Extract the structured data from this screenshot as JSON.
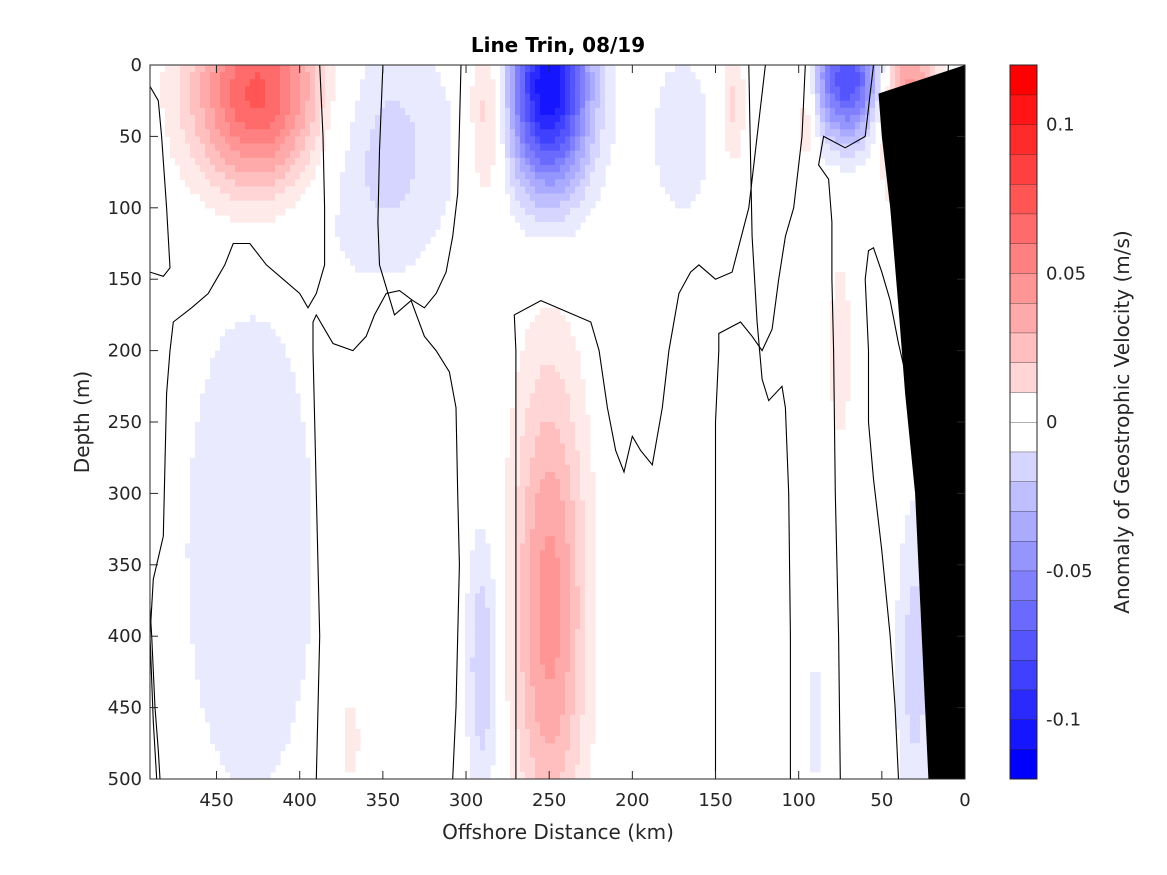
{
  "chart_data": {
    "type": "heatmap",
    "subtype": "filled-contour section",
    "title": "Line Trin, 08/19",
    "xlabel": "Offshore Distance (km)",
    "ylabel": "Depth (m)",
    "colorbar_label": "Anomaly of Geostrophic Velocity (m/s)",
    "x_range": [
      490,
      0
    ],
    "x_reversed": true,
    "y_range": [
      0,
      500
    ],
    "y_reversed": true,
    "x_ticks": [
      450,
      400,
      350,
      300,
      250,
      200,
      150,
      100,
      50,
      0
    ],
    "x_tick_labels": [
      "450",
      "400",
      "350",
      "300",
      "250",
      "200",
      "150",
      "100",
      "50",
      "0"
    ],
    "y_ticks": [
      0,
      50,
      100,
      150,
      200,
      250,
      300,
      350,
      400,
      450,
      500
    ],
    "y_tick_labels": [
      "0",
      "50",
      "100",
      "150",
      "200",
      "250",
      "300",
      "350",
      "400",
      "450",
      "500"
    ],
    "color_range": [
      -0.12,
      0.12
    ],
    "colorbar_levels": [
      -0.12,
      -0.11,
      -0.1,
      -0.09,
      -0.08,
      -0.07,
      -0.06,
      -0.05,
      -0.04,
      -0.03,
      -0.02,
      -0.01,
      0,
      0.01,
      0.02,
      0.03,
      0.04,
      0.05,
      0.06,
      0.07,
      0.08,
      0.09,
      0.1,
      0.11,
      0.12
    ],
    "colorbar_ticks": [
      -0.1,
      -0.05,
      0,
      0.05,
      0.1
    ],
    "colorbar_tick_labels": [
      "-0.1",
      "-0.05",
      "0",
      "0.05",
      "0.1"
    ],
    "zero_contour": "black line",
    "bathymetry_mask_color": "#000000",
    "colors": {
      "positive_max": "#ff0000",
      "negative_max": "#0000ff",
      "zero": "#ffffff"
    },
    "features": [
      {
        "sign": "positive",
        "x_center_km": 425,
        "depth_center_m": 20,
        "x_halfwidth_km": 40,
        "depth_halfheight_m": 70,
        "peak": 0.085
      },
      {
        "sign": "negative",
        "x_center_km": 250,
        "depth_center_m": 15,
        "x_halfwidth_km": 25,
        "depth_halfheight_m": 75,
        "peak": -0.12
      },
      {
        "sign": "negative",
        "x_center_km": 70,
        "depth_center_m": 10,
        "x_halfwidth_km": 22,
        "depth_halfheight_m": 45,
        "peak": -0.09
      },
      {
        "sign": "positive",
        "x_center_km": 35,
        "depth_center_m": 25,
        "x_halfwidth_km": 18,
        "depth_halfheight_m": 60,
        "peak": 0.06
      },
      {
        "sign": "positive",
        "x_center_km": 287,
        "depth_center_m": 30,
        "x_halfwidth_km": 12,
        "depth_halfheight_m": 70,
        "peak": 0.035
      },
      {
        "sign": "positive",
        "x_center_km": 250,
        "depth_center_m": 380,
        "x_halfwidth_km": 22,
        "depth_halfheight_m": 170,
        "peak": 0.055
      },
      {
        "sign": "positive",
        "x_center_km": 140,
        "depth_center_m": 30,
        "x_halfwidth_km": 8,
        "depth_halfheight_m": 45,
        "peak": 0.025
      },
      {
        "sign": "positive",
        "x_center_km": 95,
        "depth_center_m": 30,
        "x_halfwidth_km": 7,
        "depth_halfheight_m": 40,
        "peak": 0.03
      },
      {
        "sign": "positive",
        "x_center_km": 75,
        "depth_center_m": 200,
        "x_halfwidth_km": 9,
        "depth_halfheight_m": 90,
        "peak": 0.015
      },
      {
        "sign": "positive",
        "x_center_km": 370,
        "depth_center_m": 470,
        "x_halfwidth_km": 10,
        "depth_halfheight_m": 50,
        "peak": 0.015
      },
      {
        "sign": "negative",
        "x_center_km": 430,
        "depth_center_m": 340,
        "x_halfwidth_km": 45,
        "depth_halfheight_m": 200,
        "peak": -0.02
      },
      {
        "sign": "negative",
        "x_center_km": 350,
        "depth_center_m": 60,
        "x_halfwidth_km": 45,
        "depth_halfheight_m": 90,
        "peak": -0.025
      },
      {
        "sign": "negative",
        "x_center_km": 290,
        "depth_center_m": 420,
        "x_halfwidth_km": 10,
        "depth_halfheight_m": 100,
        "peak": -0.03
      },
      {
        "sign": "negative",
        "x_center_km": 170,
        "depth_center_m": 50,
        "x_halfwidth_km": 25,
        "depth_halfheight_m": 80,
        "peak": -0.015
      },
      {
        "sign": "negative",
        "x_center_km": 30,
        "depth_center_m": 420,
        "x_halfwidth_km": 12,
        "depth_halfheight_m": 120,
        "peak": -0.025
      },
      {
        "sign": "negative",
        "x_center_km": 90,
        "depth_center_m": 460,
        "x_halfwidth_km": 6,
        "depth_halfheight_m": 60,
        "peak": -0.015
      }
    ],
    "zero_contours": [
      [
        [
          490,
          15
        ],
        [
          485,
          25
        ],
        [
          483,
          50
        ],
        [
          480,
          100
        ],
        [
          478,
          142
        ],
        [
          482,
          148
        ],
        [
          490,
          145
        ]
      ],
      [
        [
          490,
          380
        ],
        [
          489,
          400
        ],
        [
          487,
          450
        ],
        [
          485,
          480
        ],
        [
          484,
          500
        ]
      ],
      [
        [
          486,
          500
        ],
        [
          488,
          460
        ],
        [
          490,
          400
        ],
        [
          488,
          360
        ],
        [
          484,
          340
        ],
        [
          482,
          330
        ],
        [
          480,
          230
        ],
        [
          478,
          200
        ],
        [
          476,
          180
        ],
        [
          465,
          170
        ],
        [
          455,
          160
        ],
        [
          450,
          150
        ],
        [
          445,
          140
        ],
        [
          440,
          125
        ],
        [
          430,
          125
        ],
        [
          420,
          140
        ],
        [
          410,
          150
        ],
        [
          400,
          160
        ],
        [
          395,
          170
        ],
        [
          390,
          160
        ],
        [
          385,
          140
        ],
        [
          385,
          100
        ],
        [
          386,
          50
        ],
        [
          388,
          0
        ]
      ],
      [
        [
          390,
          500
        ],
        [
          389,
          450
        ],
        [
          388,
          400
        ],
        [
          389,
          350
        ],
        [
          390,
          300
        ],
        [
          391,
          250
        ],
        [
          392,
          200
        ],
        [
          392,
          180
        ],
        [
          390,
          175
        ],
        [
          385,
          185
        ],
        [
          380,
          195
        ],
        [
          368,
          200
        ],
        [
          360,
          190
        ],
        [
          355,
          175
        ],
        [
          348,
          160
        ],
        [
          340,
          158
        ],
        [
          332,
          165
        ],
        [
          325,
          170
        ],
        [
          318,
          160
        ],
        [
          312,
          145
        ],
        [
          308,
          120
        ],
        [
          305,
          90
        ],
        [
          304,
          45
        ],
        [
          303,
          0
        ]
      ],
      [
        [
          308,
          500
        ],
        [
          306,
          450
        ],
        [
          305,
          400
        ],
        [
          304,
          350
        ],
        [
          305,
          300
        ],
        [
          306,
          240
        ],
        [
          310,
          215
        ],
        [
          318,
          200
        ],
        [
          325,
          190
        ],
        [
          333,
          165
        ],
        [
          343,
          175
        ],
        [
          352,
          140
        ],
        [
          353,
          110
        ],
        [
          352,
          60
        ],
        [
          350,
          0
        ]
      ],
      [
        [
          270,
          500
        ],
        [
          270,
          400
        ],
        [
          270,
          300
        ],
        [
          270,
          200
        ],
        [
          271,
          175
        ],
        [
          255,
          165
        ],
        [
          245,
          170
        ],
        [
          225,
          180
        ],
        [
          220,
          200
        ],
        [
          215,
          240
        ],
        [
          210,
          270
        ],
        [
          205,
          285
        ],
        [
          200,
          260
        ],
        [
          195,
          270
        ],
        [
          188,
          280
        ],
        [
          182,
          240
        ],
        [
          178,
          200
        ],
        [
          172,
          160
        ],
        [
          165,
          145
        ],
        [
          160,
          140
        ],
        [
          150,
          150
        ],
        [
          140,
          145
        ],
        [
          130,
          100
        ],
        [
          125,
          50
        ],
        [
          120,
          0
        ]
      ],
      [
        [
          150,
          500
        ],
        [
          150,
          400
        ],
        [
          150,
          300
        ],
        [
          150,
          250
        ],
        [
          148,
          200
        ],
        [
          148,
          188
        ],
        [
          135,
          180
        ],
        [
          128,
          190
        ],
        [
          122,
          200
        ],
        [
          116,
          185
        ],
        [
          112,
          150
        ],
        [
          108,
          120
        ],
        [
          103,
          100
        ],
        [
          98,
          50
        ],
        [
          96,
          0
        ]
      ],
      [
        [
          105,
          500
        ],
        [
          105,
          400
        ],
        [
          106,
          300
        ],
        [
          108,
          240
        ],
        [
          110,
          225
        ],
        [
          118,
          235
        ],
        [
          122,
          220
        ],
        [
          125,
          180
        ],
        [
          128,
          120
        ],
        [
          129,
          60
        ],
        [
          130,
          0
        ]
      ],
      [
        [
          75,
          500
        ],
        [
          76,
          400
        ],
        [
          78,
          300
        ],
        [
          79,
          200
        ],
        [
          80,
          150
        ],
        [
          80,
          110
        ],
        [
          82,
          80
        ],
        [
          88,
          70
        ],
        [
          85,
          50
        ],
        [
          72,
          58
        ],
        [
          60,
          50
        ],
        [
          55,
          0
        ]
      ],
      [
        [
          40,
          500
        ],
        [
          42,
          450
        ],
        [
          45,
          400
        ],
        [
          50,
          340
        ],
        [
          55,
          290
        ],
        [
          58,
          250
        ],
        [
          58,
          200
        ],
        [
          60,
          150
        ],
        [
          58,
          130
        ],
        [
          55,
          128
        ],
        [
          50,
          145
        ],
        [
          45,
          165
        ],
        [
          40,
          195
        ],
        [
          35,
          220
        ],
        [
          28,
          240
        ],
        [
          20,
          240
        ],
        [
          15,
          200
        ],
        [
          14,
          120
        ],
        [
          12,
          50
        ],
        [
          10,
          0
        ]
      ]
    ],
    "bathymetry_polygon": [
      [
        0,
        0
      ],
      [
        0,
        500
      ],
      [
        22,
        500
      ],
      [
        30,
        300
      ],
      [
        36,
        230
      ],
      [
        40,
        170
      ],
      [
        45,
        100
      ],
      [
        50,
        50
      ],
      [
        52,
        20
      ],
      [
        0,
        0
      ]
    ]
  }
}
